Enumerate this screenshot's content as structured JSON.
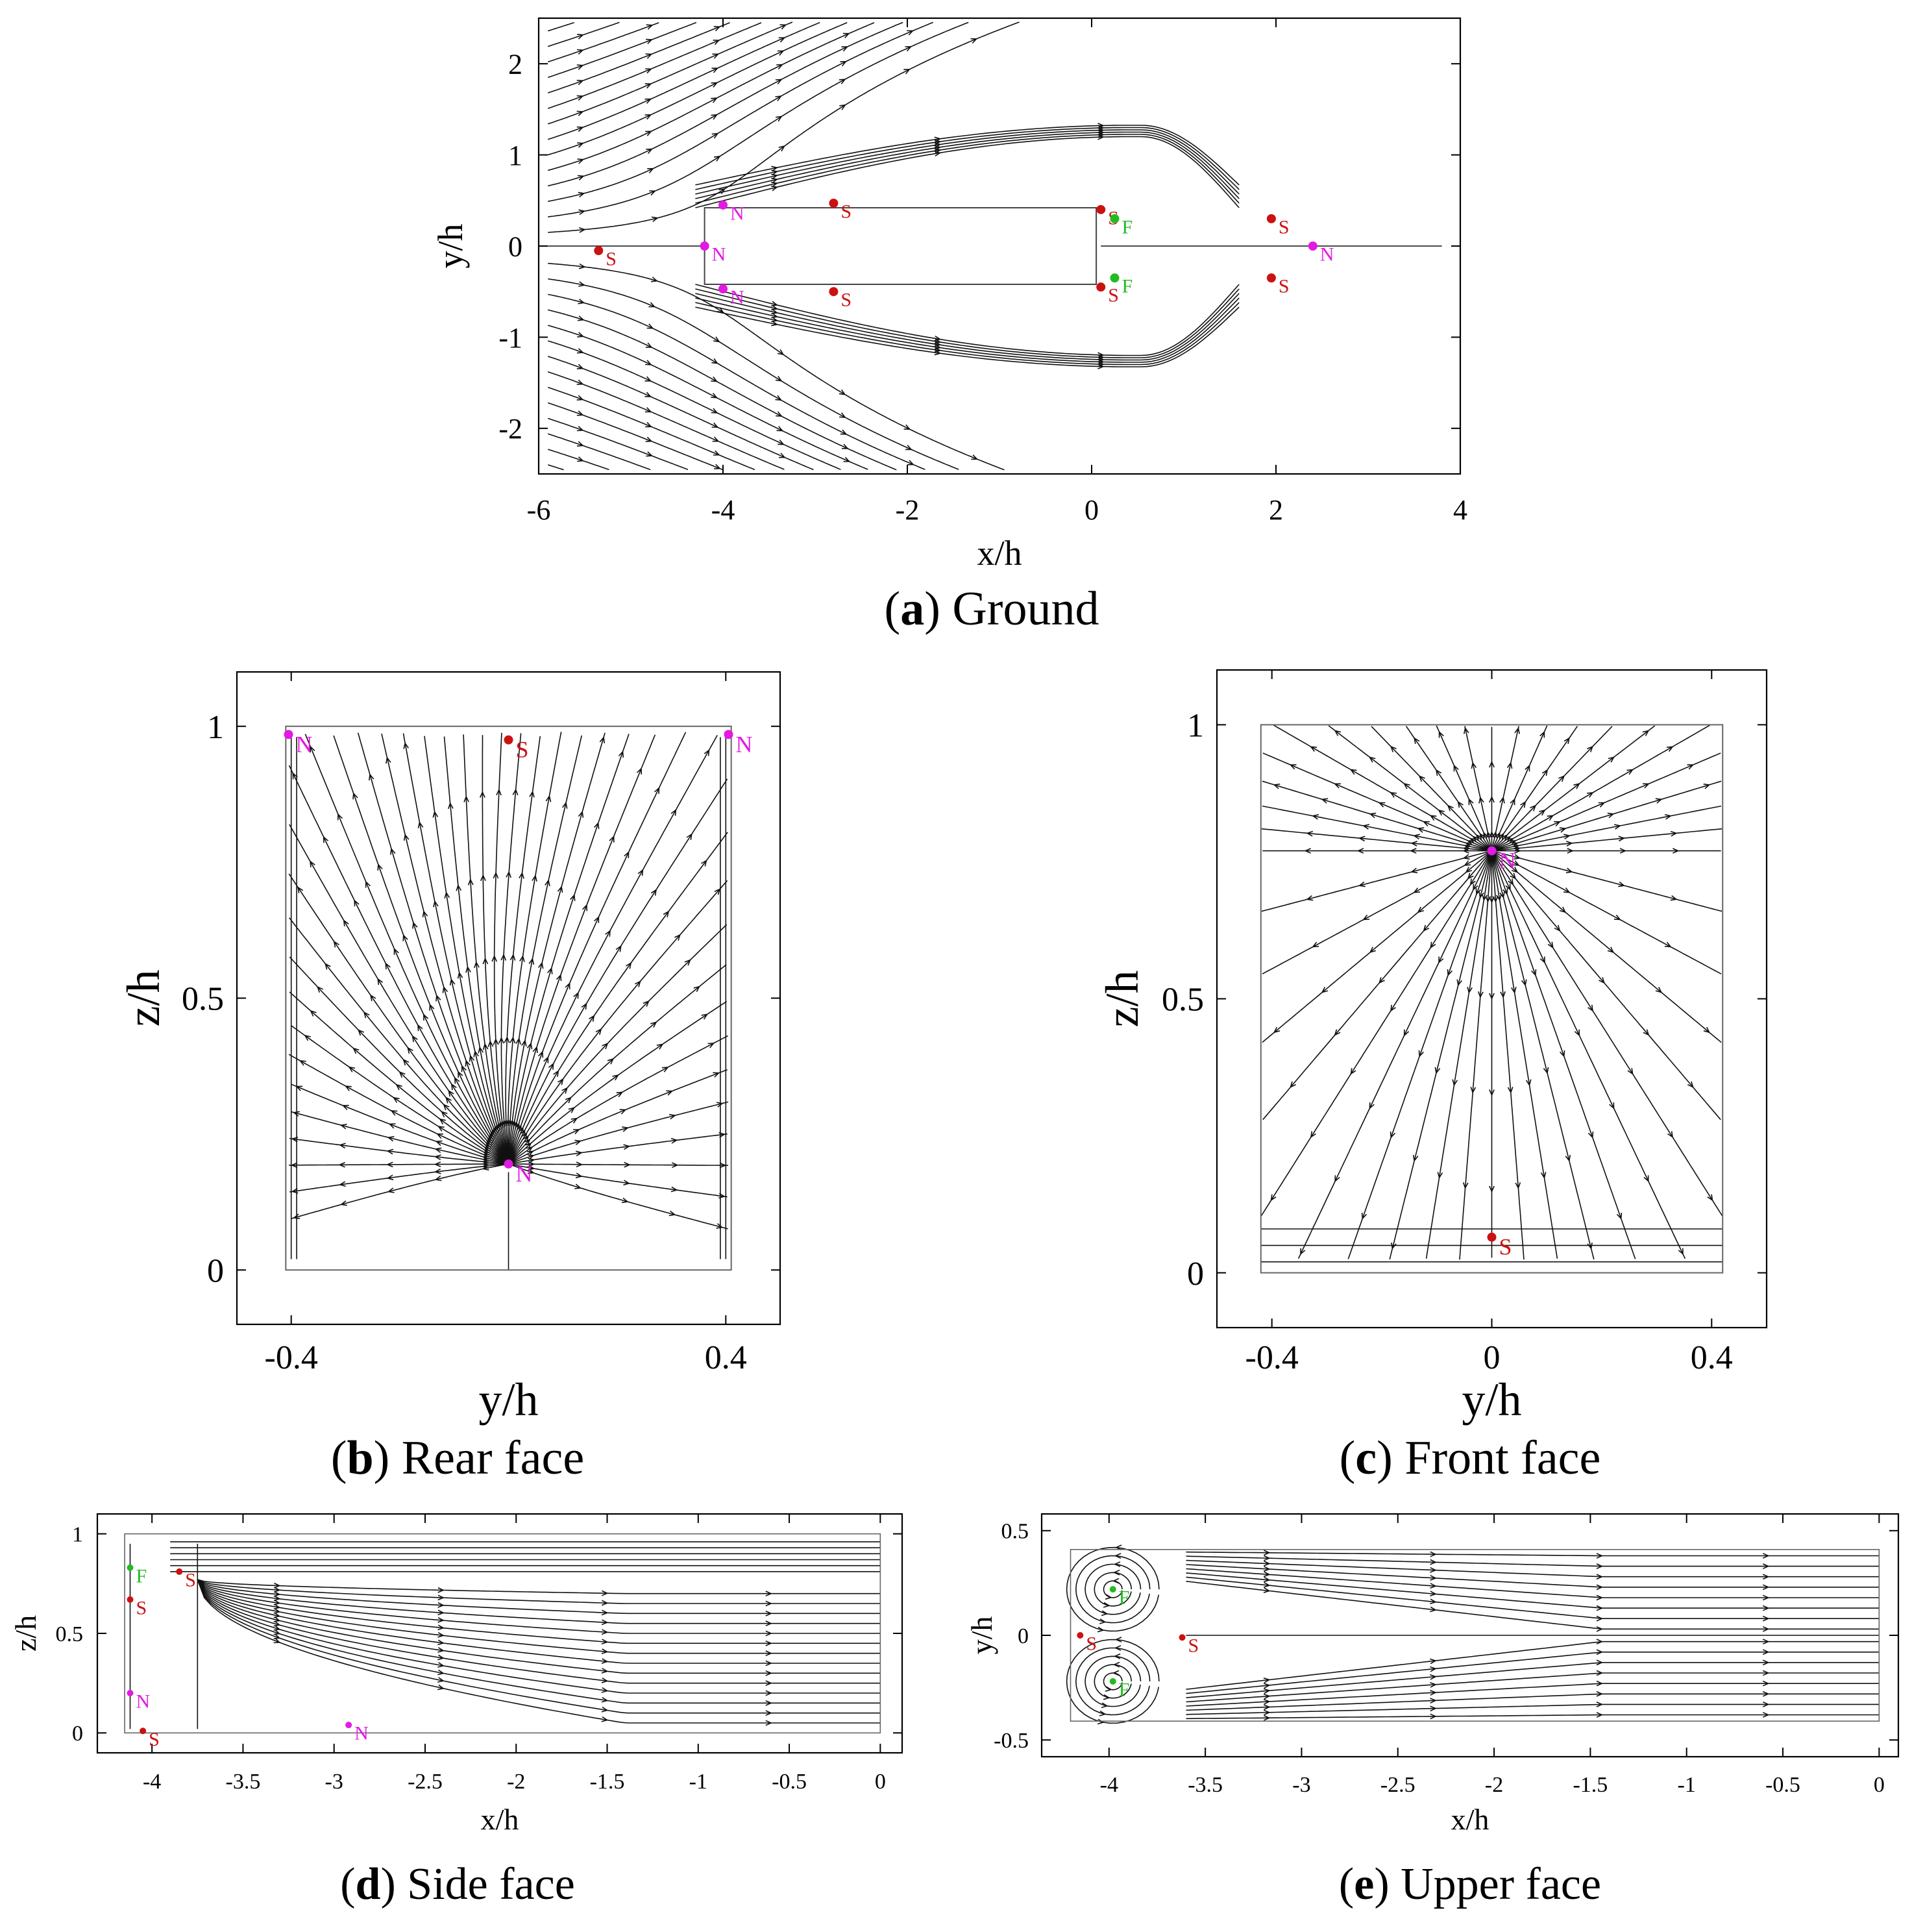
{
  "colors": {
    "saddle": "#cc1111",
    "node": "#e21ae2",
    "focus": "#22bb22",
    "streamline": "#111111"
  },
  "chart_data": [
    {
      "id": "a",
      "type": "scatter",
      "caption_letter": "a",
      "caption_text": "Ground",
      "xlabel": "x/h",
      "ylabel": "y/h",
      "xlim": [
        -6,
        4
      ],
      "ylim": [
        -2.5,
        2.5
      ],
      "xticks": [
        -6,
        -4,
        -2,
        0,
        2,
        4
      ],
      "yticks": [
        -2,
        -1,
        0,
        1,
        2
      ],
      "xtick_labels": [
        "-6",
        "-4",
        "-2",
        "0",
        "2",
        "4"
      ],
      "ytick_labels": [
        "-2",
        "-1",
        "0",
        "1",
        "2"
      ],
      "body": {
        "x": [
          -4.2,
          0.05
        ],
        "y": [
          -0.42,
          0.42
        ]
      },
      "points": [
        {
          "x": -5.35,
          "y": -0.05,
          "type": "S",
          "label": "S"
        },
        {
          "x": -4.2,
          "y": 0.0,
          "type": "N",
          "label": "N"
        },
        {
          "x": -4.0,
          "y": 0.45,
          "type": "N",
          "label": "N"
        },
        {
          "x": -4.0,
          "y": -0.47,
          "type": "N",
          "label": "N"
        },
        {
          "x": -2.8,
          "y": 0.47,
          "type": "S",
          "label": "S"
        },
        {
          "x": -2.8,
          "y": -0.5,
          "type": "S",
          "label": "S"
        },
        {
          "x": 0.1,
          "y": 0.4,
          "type": "S",
          "label": "S"
        },
        {
          "x": 0.1,
          "y": -0.45,
          "type": "S",
          "label": "S"
        },
        {
          "x": 0.25,
          "y": 0.3,
          "type": "F",
          "label": "F"
        },
        {
          "x": 0.25,
          "y": -0.35,
          "type": "F",
          "label": "F"
        },
        {
          "x": 1.95,
          "y": 0.3,
          "type": "S",
          "label": "S"
        },
        {
          "x": 1.95,
          "y": -0.35,
          "type": "S",
          "label": "S"
        },
        {
          "x": 2.4,
          "y": 0.0,
          "type": "N",
          "label": "N"
        }
      ]
    },
    {
      "id": "b",
      "type": "scatter",
      "caption_letter": "b",
      "caption_text": "Rear face",
      "xlabel": "y/h",
      "ylabel": "z/h",
      "xlim": [
        -0.5,
        0.5
      ],
      "ylim": [
        -0.1,
        1.1
      ],
      "xticks": [
        -0.4,
        0.4
      ],
      "yticks": [
        0,
        0.5,
        1
      ],
      "xtick_labels": [
        "-0.4",
        "0.4"
      ],
      "ytick_labels": [
        "0",
        "0.5",
        "1"
      ],
      "body": {
        "x": [
          -0.41,
          0.41
        ],
        "y": [
          0,
          1.0
        ]
      },
      "points": [
        {
          "x": -0.405,
          "y": 0.985,
          "type": "N",
          "label": "N"
        },
        {
          "x": 0.0,
          "y": 0.975,
          "type": "S",
          "label": "S"
        },
        {
          "x": 0.405,
          "y": 0.985,
          "type": "N",
          "label": "N"
        },
        {
          "x": 0.0,
          "y": 0.195,
          "type": "N",
          "label": "N"
        }
      ]
    },
    {
      "id": "c",
      "type": "scatter",
      "caption_letter": "c",
      "caption_text": "Front face",
      "xlabel": "y/h",
      "ylabel": "z/h",
      "xlim": [
        -0.5,
        0.5
      ],
      "ylim": [
        -0.1,
        1.1
      ],
      "xticks": [
        -0.4,
        0,
        0.4
      ],
      "yticks": [
        0,
        0.5,
        1
      ],
      "xtick_labels": [
        "-0.4",
        "0",
        "0.4"
      ],
      "ytick_labels": [
        "0",
        "0.5",
        "1"
      ],
      "body": {
        "x": [
          -0.42,
          0.42
        ],
        "y": [
          0,
          1.0
        ]
      },
      "points": [
        {
          "x": 0.0,
          "y": 0.77,
          "type": "N",
          "label": "N"
        },
        {
          "x": 0.0,
          "y": 0.065,
          "type": "S",
          "label": "S"
        }
      ]
    },
    {
      "id": "d",
      "type": "scatter",
      "caption_letter": "d",
      "caption_text": "Side face",
      "xlabel": "x/h",
      "ylabel": "z/h",
      "xlim": [
        -4.3,
        0.12
      ],
      "ylim": [
        -0.1,
        1.1
      ],
      "xticks": [
        -4,
        -3.5,
        -3,
        -2.5,
        -2,
        -1.5,
        -1,
        -0.5,
        0
      ],
      "yticks": [
        0,
        0.5,
        1
      ],
      "xtick_labels": [
        "-4",
        "-3.5",
        "-3",
        "-2.5",
        "-2",
        "-1.5",
        "-1",
        "-0.5",
        "0"
      ],
      "ytick_labels": [
        "0",
        "0.5",
        "1"
      ],
      "body": {
        "x": [
          -4.15,
          0.0
        ],
        "y": [
          0,
          1.0
        ]
      },
      "points": [
        {
          "x": -4.12,
          "y": 0.83,
          "type": "F",
          "label": "F"
        },
        {
          "x": -4.12,
          "y": 0.67,
          "type": "S",
          "label": "S"
        },
        {
          "x": -3.85,
          "y": 0.81,
          "type": "S",
          "label": "S"
        },
        {
          "x": -4.12,
          "y": 0.2,
          "type": "N",
          "label": "N"
        },
        {
          "x": -4.05,
          "y": 0.01,
          "type": "S",
          "label": "S"
        },
        {
          "x": -2.92,
          "y": 0.04,
          "type": "N",
          "label": "N"
        }
      ]
    },
    {
      "id": "e",
      "type": "scatter",
      "caption_letter": "e",
      "caption_text": "Upper face",
      "xlabel": "x/h",
      "ylabel": "y/h",
      "xlim": [
        -4.35,
        0.1
      ],
      "ylim": [
        -0.58,
        0.58
      ],
      "xticks": [
        -4,
        -3.5,
        -3,
        -2.5,
        -2,
        -1.5,
        -1,
        -0.5,
        0
      ],
      "yticks": [
        -0.5,
        0,
        0.5
      ],
      "xtick_labels": [
        "-4",
        "-3.5",
        "-3",
        "-2.5",
        "-2",
        "-1.5",
        "-1",
        "-0.5",
        "0"
      ],
      "ytick_labels": [
        "-0.5",
        "0",
        "0.5"
      ],
      "body": {
        "x": [
          -4.2,
          0.0
        ],
        "y": [
          -0.41,
          0.41
        ]
      },
      "points": [
        {
          "x": -3.98,
          "y": 0.22,
          "type": "F",
          "label": "F"
        },
        {
          "x": -4.15,
          "y": 0.0,
          "type": "S",
          "label": "S"
        },
        {
          "x": -3.62,
          "y": -0.01,
          "type": "S",
          "label": "S"
        },
        {
          "x": -3.98,
          "y": -0.22,
          "type": "F",
          "label": "F"
        }
      ]
    }
  ]
}
